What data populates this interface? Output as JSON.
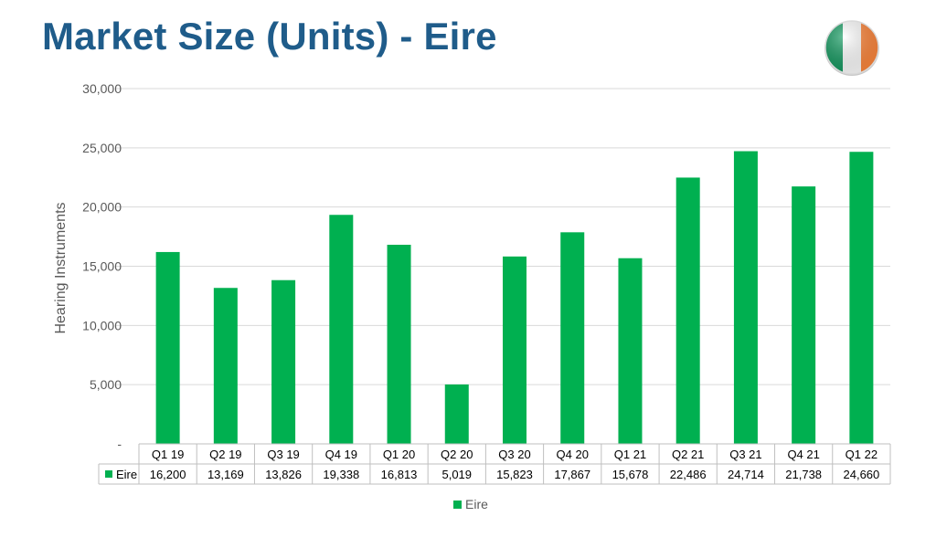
{
  "header": {
    "title": "Market Size (Units) - Eire",
    "flag_icon": "ireland-flag-icon"
  },
  "colors": {
    "title": "#1f5c8a",
    "bar": "#00b050",
    "flag_green": "#169b62",
    "flag_white": "#ffffff",
    "flag_orange": "#ff883e"
  },
  "chart_data": {
    "type": "bar",
    "title": "",
    "xlabel": "",
    "ylabel": "Hearing Instruments",
    "categories": [
      "Q1 19",
      "Q2 19",
      "Q3 19",
      "Q4 19",
      "Q1 20",
      "Q2 20",
      "Q3 20",
      "Q4 20",
      "Q1 21",
      "Q2 21",
      "Q3 21",
      "Q4 21",
      "Q1 22"
    ],
    "series": [
      {
        "name": "Eire",
        "values": [
          16200,
          13169,
          13826,
          19338,
          16813,
          5019,
          15823,
          17867,
          15678,
          22486,
          24714,
          21738,
          24660
        ],
        "labels": [
          "16,200",
          "13,169",
          "13,826",
          "19,338",
          "16,813",
          "5,019",
          "15,823",
          "17,867",
          "15,678",
          "22,486",
          "24,714",
          "21,738",
          "24,660"
        ]
      }
    ],
    "ylim": [
      0,
      30000
    ],
    "yticks": [
      0,
      5000,
      10000,
      15000,
      20000,
      25000,
      30000
    ],
    "ytick_labels": [
      "-",
      "5,000",
      "10,000",
      "15,000",
      "20,000",
      "25,000",
      "30,000"
    ],
    "grid": true,
    "data_table": true,
    "legend": {
      "position": "bottom",
      "entries": [
        "Eire"
      ]
    }
  }
}
